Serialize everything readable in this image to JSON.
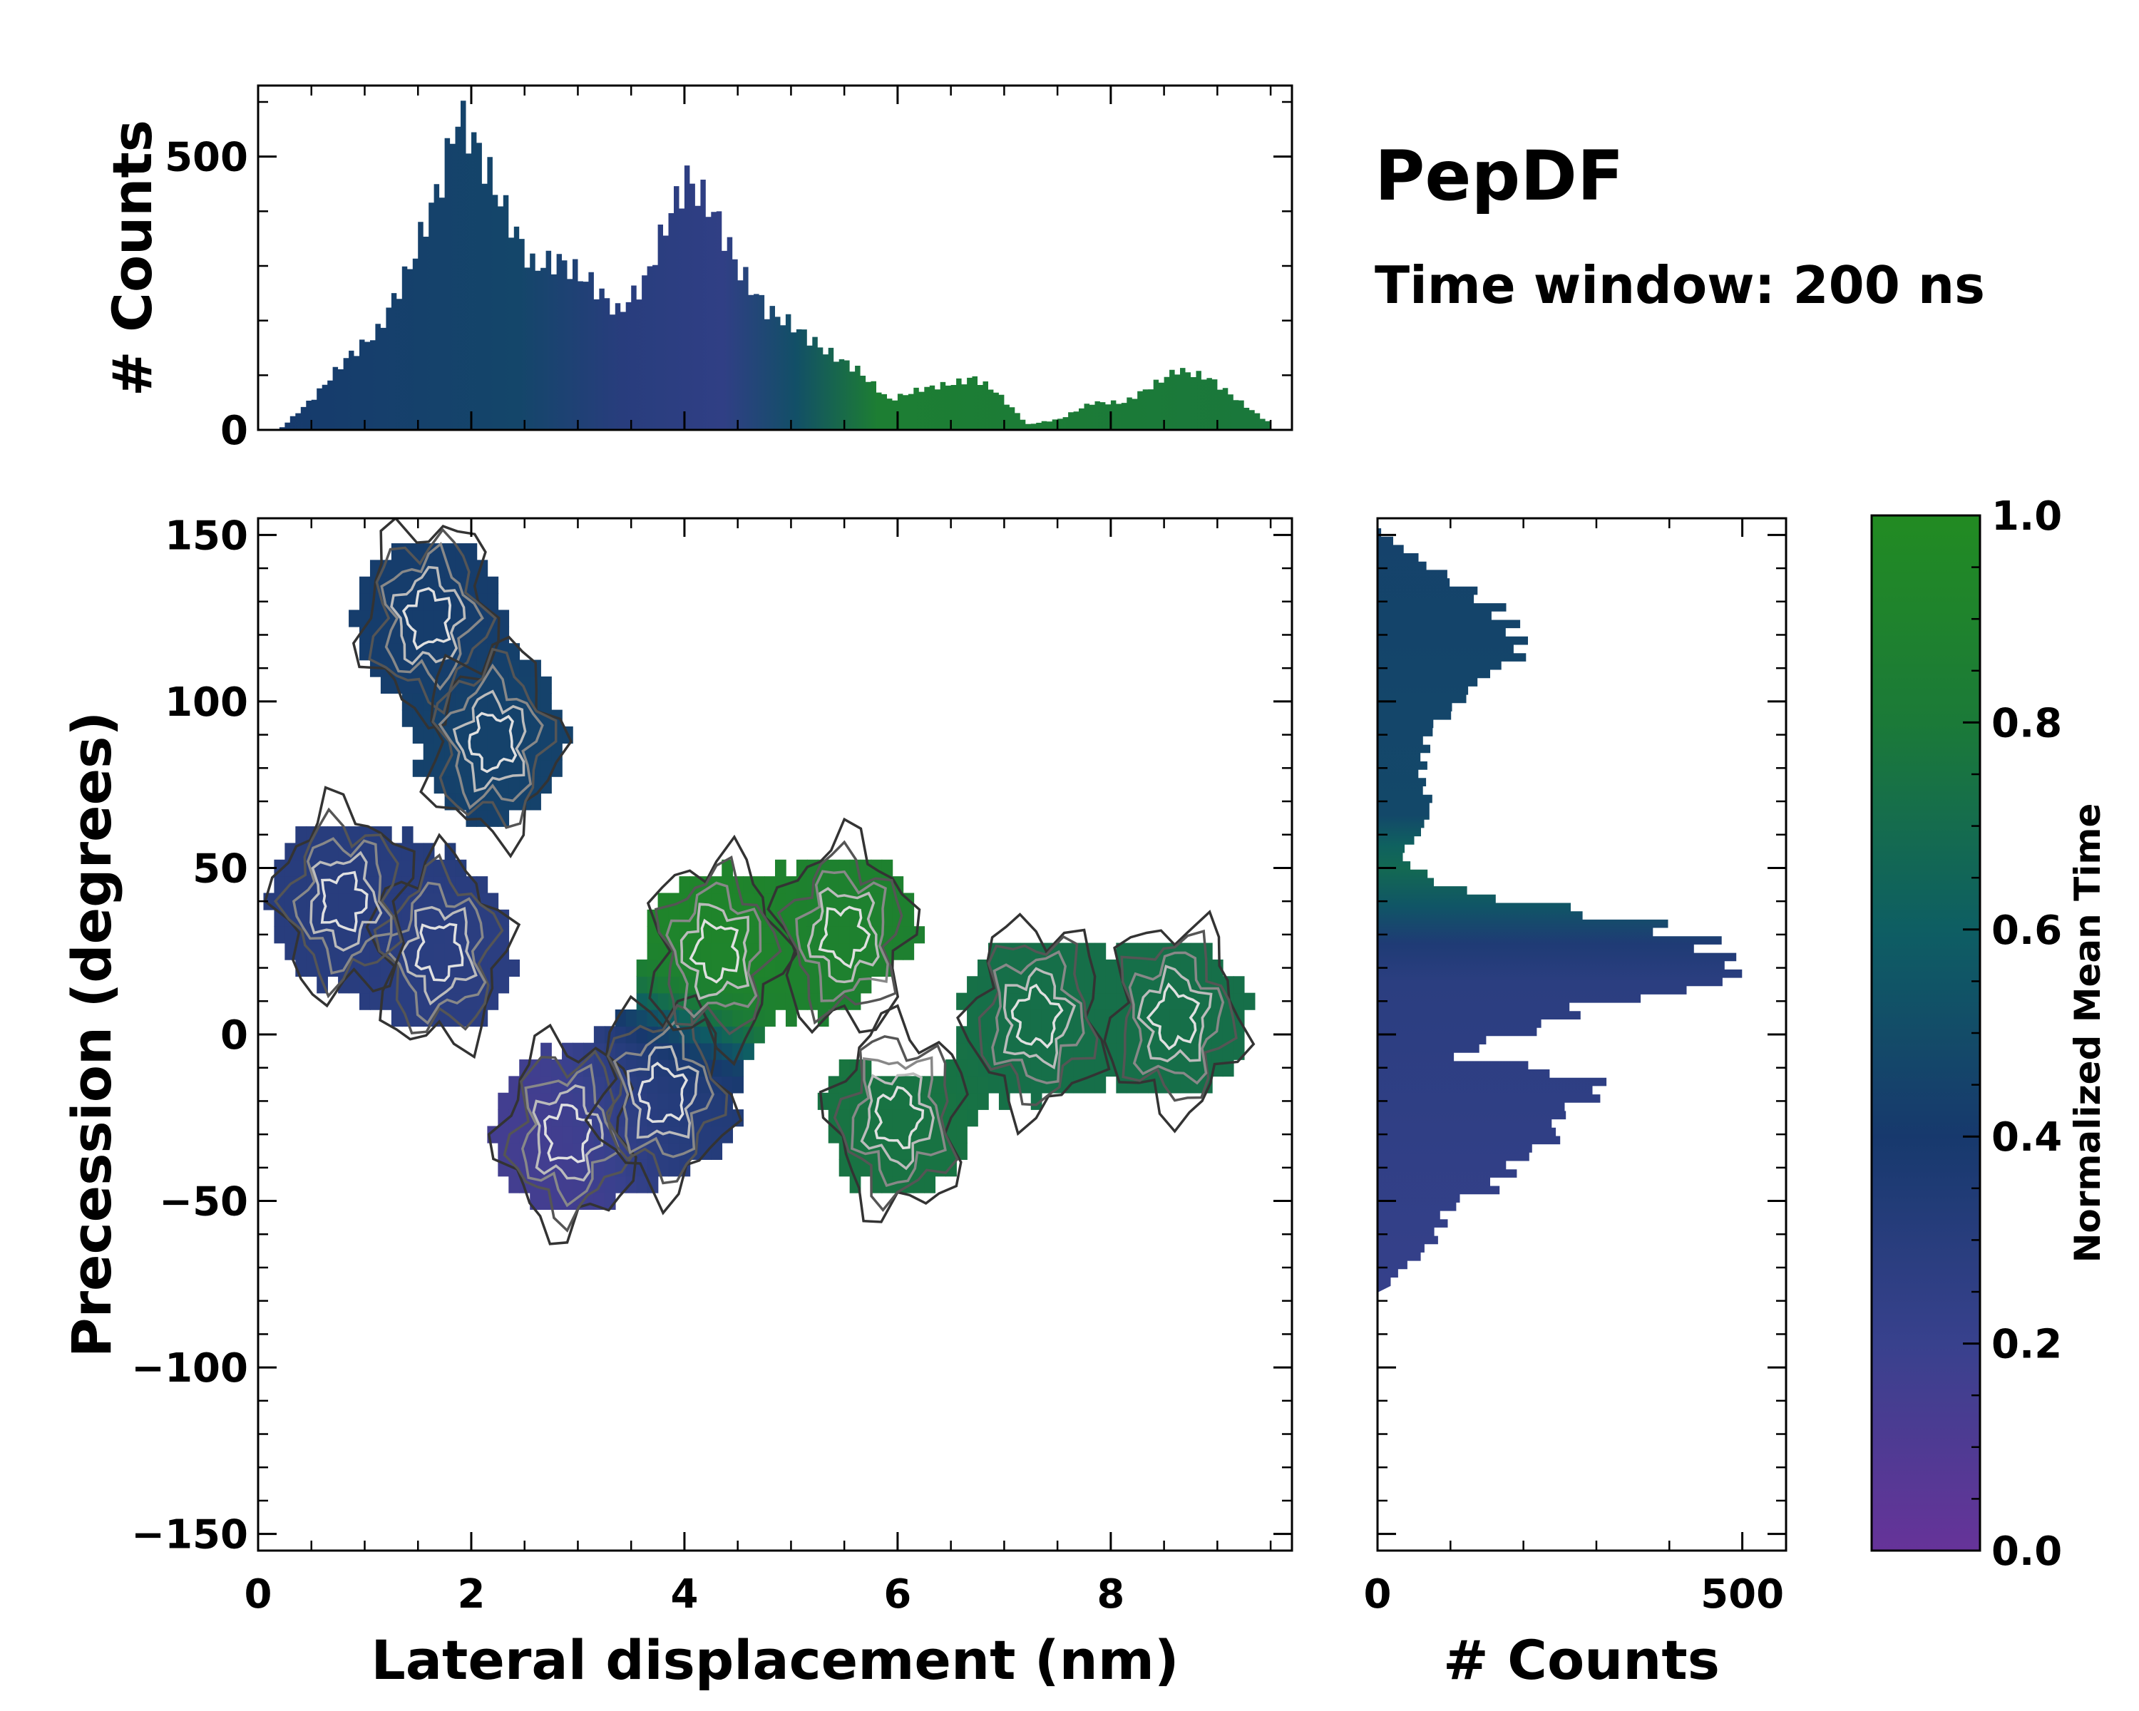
{
  "chart_data": [
    {
      "name": "main_density",
      "type": "heatmap",
      "xlabel": "Lateral displacement (nm)",
      "ylabel": "Precession (degrees)",
      "xlim": [
        0,
        9.7
      ],
      "ylim": [
        -155,
        155
      ],
      "xticks": [
        0,
        2,
        4,
        6,
        8
      ],
      "xtick_labels": [
        "0",
        "2",
        "4",
        "6",
        "8"
      ],
      "yticks": [
        150,
        100,
        50,
        0,
        -50,
        -100,
        -150
      ],
      "ytick_labels": [
        "150",
        "100",
        "50",
        "0",
        "−50",
        "−100",
        "−150"
      ],
      "clusters": [
        {
          "x": 1.6,
          "y": 125,
          "t": 0.42
        },
        {
          "x": 2.2,
          "y": 88,
          "t": 0.45
        },
        {
          "x": 1.7,
          "y": 25,
          "t": 0.28
        },
        {
          "x": 0.8,
          "y": 40,
          "t": 0.3
        },
        {
          "x": 2.9,
          "y": -30,
          "t": 0.15
        },
        {
          "x": 3.8,
          "y": -18,
          "t": 0.32
        },
        {
          "x": 4.3,
          "y": 25,
          "t": 0.92
        },
        {
          "x": 5.5,
          "y": 30,
          "t": 0.88
        },
        {
          "x": 6.0,
          "y": -25,
          "t": 0.75
        },
        {
          "x": 7.3,
          "y": 5,
          "t": 0.72
        },
        {
          "x": 8.6,
          "y": 5,
          "t": 0.72
        }
      ]
    },
    {
      "name": "top_histogram",
      "type": "bar",
      "xlabel": "",
      "ylabel": "# Counts",
      "ylim": [
        0,
        630
      ],
      "yticks": [
        0,
        500
      ],
      "ytick_labels": [
        "0",
        "500"
      ],
      "x": [
        0.2,
        0.5,
        0.8,
        1.1,
        1.4,
        1.7,
        1.85,
        2.0,
        2.3,
        2.55,
        2.8,
        3.1,
        3.35,
        3.6,
        3.85,
        4.0,
        4.25,
        4.5,
        4.75,
        5.0,
        5.3,
        5.6,
        5.9,
        6.2,
        6.5,
        6.7,
        6.9,
        7.2,
        7.5,
        7.8,
        8.1,
        8.4,
        8.6,
        8.9,
        9.2,
        9.45
      ],
      "values": [
        5,
        60,
        130,
        180,
        300,
        460,
        575,
        530,
        400,
        300,
        310,
        270,
        215,
        270,
        400,
        460,
        400,
        290,
        220,
        190,
        145,
        110,
        55,
        75,
        85,
        95,
        70,
        10,
        20,
        50,
        50,
        85,
        110,
        95,
        50,
        15
      ]
    },
    {
      "name": "right_histogram",
      "type": "bar",
      "orientation": "horizontal",
      "xlabel": "# Counts",
      "xlim": [
        0,
        560
      ],
      "xticks": [
        0,
        500
      ],
      "xtick_labels": [
        "0",
        "500"
      ],
      "y": [
        152,
        145,
        138,
        130,
        122,
        115,
        108,
        100,
        92,
        85,
        78,
        70,
        62,
        55,
        50,
        45,
        40,
        35,
        30,
        25,
        20,
        15,
        10,
        5,
        0,
        -5,
        -10,
        -15,
        -20,
        -25,
        -30,
        -35,
        -40,
        -45,
        -50,
        -55,
        -60,
        -65,
        -70,
        -75
      ],
      "values": [
        5,
        50,
        100,
        160,
        190,
        200,
        140,
        110,
        70,
        65,
        60,
        75,
        60,
        30,
        60,
        100,
        230,
        360,
        440,
        470,
        500,
        450,
        280,
        250,
        170,
        100,
        250,
        320,
        270,
        240,
        250,
        200,
        180,
        160,
        100,
        90,
        80,
        60,
        30,
        10
      ]
    },
    {
      "name": "colorbar",
      "type": "colorbar",
      "label": "Normalized Mean Time",
      "range": [
        0,
        1
      ],
      "ticks": [
        0,
        0.2,
        0.4,
        0.6,
        0.8,
        1.0
      ],
      "tick_labels": [
        "0.0",
        "0.2",
        "0.4",
        "0.6",
        "0.8",
        "1.0"
      ],
      "colormap": [
        "#663399",
        "#38418d",
        "#17396d",
        "#0e5e63",
        "#1b7a38",
        "#228b22"
      ]
    }
  ],
  "annotations": {
    "title": "PepDF",
    "subtitle": "Time window: 200 ns"
  }
}
